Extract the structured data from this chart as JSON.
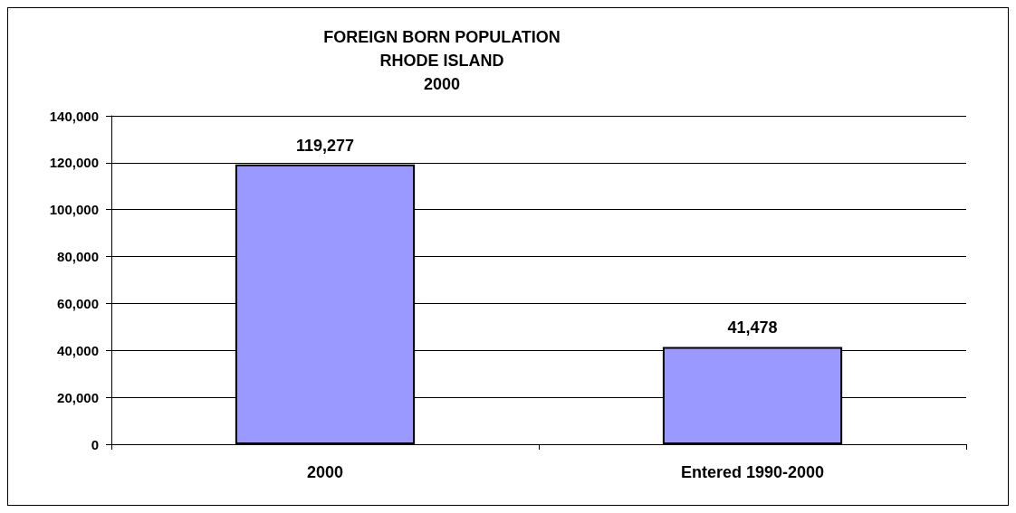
{
  "chart_data": {
    "type": "bar",
    "title": "FOREIGN BORN POPULATION\nRHODE ISLAND\n2000",
    "categories": [
      "2000",
      "Entered 1990-2000"
    ],
    "values": [
      119277,
      41478
    ],
    "color": "#9999ff",
    "ylim": [
      0,
      140000
    ],
    "yticks": [
      {
        "value": 0,
        "label": "0"
      },
      {
        "value": 20000,
        "label": "20,000"
      },
      {
        "value": 40000,
        "label": "40,000"
      },
      {
        "value": 60000,
        "label": "60,000"
      },
      {
        "value": 80000,
        "label": "80,000"
      },
      {
        "value": 100000,
        "label": "100,000"
      },
      {
        "value": 120000,
        "label": "120,000"
      },
      {
        "value": 140000,
        "label": "140,000"
      }
    ],
    "value_labels": [
      "119,277",
      "41,478"
    ],
    "grid": "y"
  }
}
